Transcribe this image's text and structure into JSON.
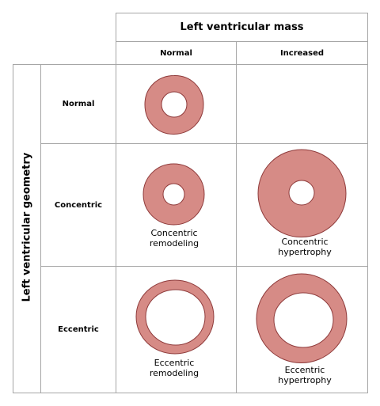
{
  "header": {
    "mass_title": "Left ventricular mass",
    "col_normal": "Normal",
    "col_increased": "Increased",
    "geometry_title": "Left ventricular geometry"
  },
  "rows": {
    "normal": "Normal",
    "concentric": "Concentric",
    "eccentric": "Eccentric"
  },
  "captions": {
    "concentric_remodeling_1": "Concentric",
    "concentric_remodeling_2": "remodeling",
    "concentric_hypertrophy_1": "Concentric",
    "concentric_hypertrophy_2": "hypertrophy",
    "eccentric_remodeling_1": "Eccentric",
    "eccentric_remodeling_2": "remodeling",
    "eccentric_hypertrophy_1": "Eccentric",
    "eccentric_hypertrophy_2": "hypertrophy"
  },
  "colors": {
    "wall_fill": "#d68b86",
    "wall_stroke": "#8e3a3a",
    "grid_line": "#a6a6a6"
  }
}
